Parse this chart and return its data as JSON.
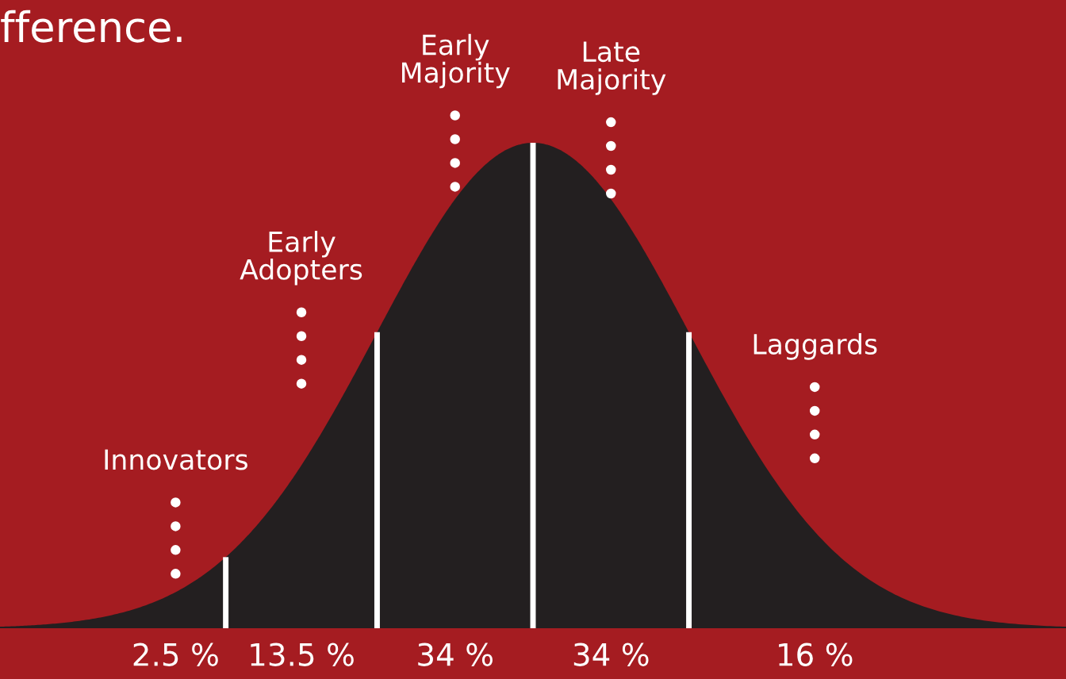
{
  "chart_data": {
    "type": "other",
    "title": "fference.",
    "categories": [
      "Innovators",
      "Early\nAdopters",
      "Early\nMajority",
      "Late\nMajority",
      "Laggards"
    ],
    "values": [
      2.5,
      13.5,
      34,
      34,
      16
    ],
    "value_labels": [
      "2.5 %",
      "13.5 %",
      "34 %",
      "34 %",
      "16 %"
    ],
    "color": "#231f20"
  }
}
